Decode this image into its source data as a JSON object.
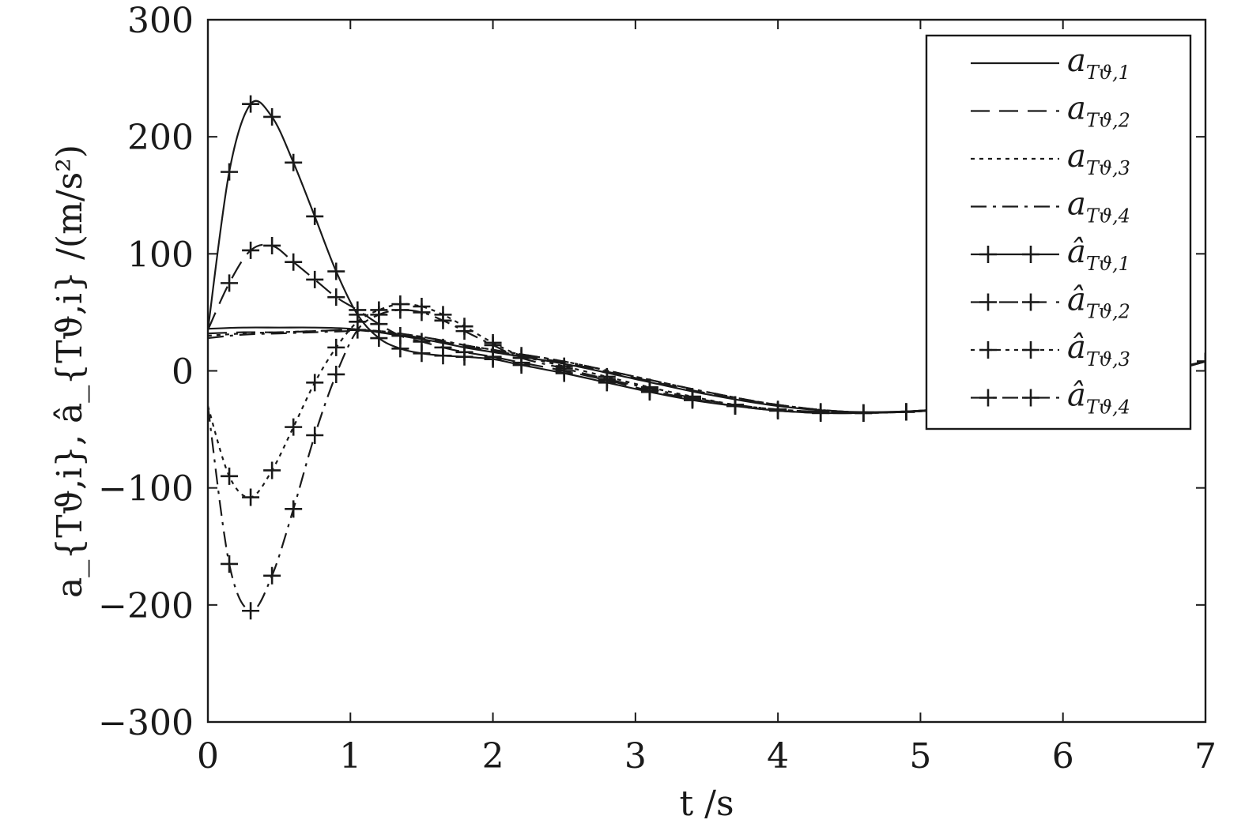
{
  "chart_data": {
    "type": "line",
    "title": "",
    "xlabel": "t /s",
    "ylabel": "a_{Tϑ,i}, â_{Tϑ,i} /(m/s²)",
    "xlim": [
      0,
      7
    ],
    "ylim": [
      -300,
      300
    ],
    "xticks": [
      "0",
      "1",
      "2",
      "3",
      "4",
      "5",
      "6",
      "7"
    ],
    "yticks": [
      "300",
      "200",
      "100",
      "0",
      "−100",
      "−200",
      "−300"
    ],
    "grid": false,
    "legend_position": "top-right",
    "series": [
      {
        "name": "a_{Tϑ,1}",
        "base": "a",
        "sub": "Tϑ,1",
        "style": "solid",
        "markers": false,
        "x": [
          0,
          0.25,
          0.5,
          0.75,
          1.0,
          1.2,
          1.4,
          1.6,
          1.8,
          2.0,
          2.5,
          3.0,
          3.5,
          4.0,
          4.5,
          5.0,
          5.5,
          6.0,
          6.5,
          7.0
        ],
        "y": [
          36,
          37,
          37,
          37,
          36,
          33,
          29,
          25,
          20,
          16,
          6,
          -7,
          -20,
          -30,
          -35,
          -34,
          -28,
          -18,
          -5,
          8
        ]
      },
      {
        "name": "a_{Tϑ,2}",
        "base": "a",
        "sub": "Tϑ,2",
        "style": "dash",
        "markers": false,
        "x": [
          0,
          0.25,
          0.5,
          0.75,
          1.0,
          1.2,
          1.4,
          1.6,
          1.8,
          2.0,
          2.5,
          3.0,
          3.5,
          4.0,
          4.5,
          5.0,
          5.5,
          6.0,
          6.5,
          7.0
        ],
        "y": [
          32,
          33,
          33,
          34,
          35,
          33,
          30,
          26,
          21,
          17,
          7,
          -6,
          -19,
          -29,
          -35,
          -34,
          -28,
          -18,
          -5,
          8
        ]
      },
      {
        "name": "a_{Tϑ,3}",
        "base": "a",
        "sub": "Tϑ,3",
        "style": "dot",
        "markers": false,
        "x": [
          0,
          0.25,
          0.5,
          0.75,
          1.0,
          1.2,
          1.4,
          1.6,
          1.8,
          2.0,
          2.5,
          3.0,
          3.5,
          4.0,
          4.5,
          5.0,
          5.5,
          6.0,
          6.5,
          7.0
        ],
        "y": [
          30,
          32,
          33,
          34,
          35,
          34,
          31,
          27,
          22,
          18,
          8,
          -5,
          -18,
          -29,
          -35,
          -34,
          -28,
          -18,
          -5,
          8
        ]
      },
      {
        "name": "a_{Tϑ,4}",
        "base": "a",
        "sub": "Tϑ,4",
        "style": "dashdot",
        "markers": false,
        "x": [
          0,
          0.25,
          0.5,
          0.75,
          1.0,
          1.2,
          1.4,
          1.6,
          1.8,
          2.0,
          2.5,
          3.0,
          3.5,
          4.0,
          4.5,
          5.0,
          5.5,
          6.0,
          6.5,
          7.0
        ],
        "y": [
          28,
          31,
          32,
          33,
          34,
          34,
          31,
          27,
          22,
          18,
          8,
          -5,
          -18,
          -29,
          -35,
          -34,
          -28,
          -18,
          -5,
          8
        ]
      },
      {
        "name": "â_{Tϑ,1}",
        "base": "â",
        "sub": "Tϑ,1",
        "style": "solid",
        "markers": true,
        "x": [
          0,
          0.15,
          0.3,
          0.45,
          0.6,
          0.75,
          0.9,
          1.05,
          1.2,
          1.35,
          1.5,
          1.65,
          1.8,
          2.0,
          2.2,
          2.5,
          2.8,
          3.1,
          3.4,
          3.7,
          4.0,
          4.3,
          4.6,
          4.9,
          5.2,
          5.5,
          5.8,
          6.1,
          6.4,
          6.7,
          7.0
        ],
        "y": [
          35,
          170,
          228,
          217,
          178,
          132,
          85,
          48,
          28,
          19,
          15,
          13,
          12,
          10,
          5,
          -2,
          -10,
          -18,
          -25,
          -30,
          -34,
          -36,
          -36,
          -35,
          -33,
          -29,
          -24,
          -18,
          -10,
          -2,
          8
        ]
      },
      {
        "name": "â_{Tϑ,2}",
        "base": "â",
        "sub": "Tϑ,2",
        "style": "dash",
        "markers": true,
        "x": [
          0,
          0.15,
          0.3,
          0.45,
          0.6,
          0.75,
          0.9,
          1.05,
          1.2,
          1.35,
          1.5,
          1.65,
          1.8,
          2.0,
          2.2,
          2.5,
          2.8,
          3.1,
          3.4,
          3.7,
          4.0,
          4.3,
          4.6,
          4.9,
          5.2,
          5.5,
          5.8,
          6.1,
          6.4,
          6.7,
          7.0
        ],
        "y": [
          35,
          75,
          103,
          107,
          93,
          78,
          63,
          52,
          40,
          30,
          25,
          20,
          16,
          12,
          7,
          0,
          -8,
          -17,
          -24,
          -30,
          -34,
          -36,
          -36,
          -35,
          -33,
          -29,
          -24,
          -18,
          -10,
          -2,
          8
        ]
      },
      {
        "name": "â_{Tϑ,3}",
        "base": "â",
        "sub": "Tϑ,3",
        "style": "dot",
        "markers": true,
        "x": [
          0,
          0.15,
          0.3,
          0.45,
          0.6,
          0.75,
          0.9,
          1.05,
          1.2,
          1.35,
          1.5,
          1.65,
          1.8,
          2.0,
          2.2,
          2.5,
          2.8,
          3.1,
          3.4,
          3.7,
          4.0,
          4.3,
          4.6,
          4.9,
          5.2,
          5.5,
          5.8,
          6.1,
          6.4,
          6.7,
          7.0
        ],
        "y": [
          -30,
          -90,
          -108,
          -85,
          -48,
          -10,
          20,
          42,
          52,
          57,
          55,
          48,
          38,
          24,
          13,
          4,
          -5,
          -14,
          -22,
          -29,
          -33,
          -35,
          -36,
          -35,
          -33,
          -29,
          -24,
          -18,
          -10,
          -2,
          8
        ]
      },
      {
        "name": "â_{Tϑ,4}",
        "base": "â",
        "sub": "Tϑ,4",
        "style": "dashdot",
        "markers": true,
        "x": [
          0,
          0.15,
          0.3,
          0.45,
          0.6,
          0.75,
          0.9,
          1.05,
          1.2,
          1.35,
          1.5,
          1.65,
          1.8,
          2.0,
          2.2,
          2.5,
          2.8,
          3.1,
          3.4,
          3.7,
          4.0,
          4.3,
          4.6,
          4.9,
          5.2,
          5.5,
          5.8,
          6.1,
          6.4,
          6.7,
          7.0
        ],
        "y": [
          -30,
          -165,
          -205,
          -175,
          -118,
          -55,
          -3,
          35,
          48,
          52,
          50,
          43,
          34,
          22,
          11,
          2,
          -7,
          -15,
          -23,
          -29,
          -33,
          -35,
          -36,
          -35,
          -33,
          -29,
          -24,
          -18,
          -10,
          -2,
          8
        ]
      }
    ]
  }
}
